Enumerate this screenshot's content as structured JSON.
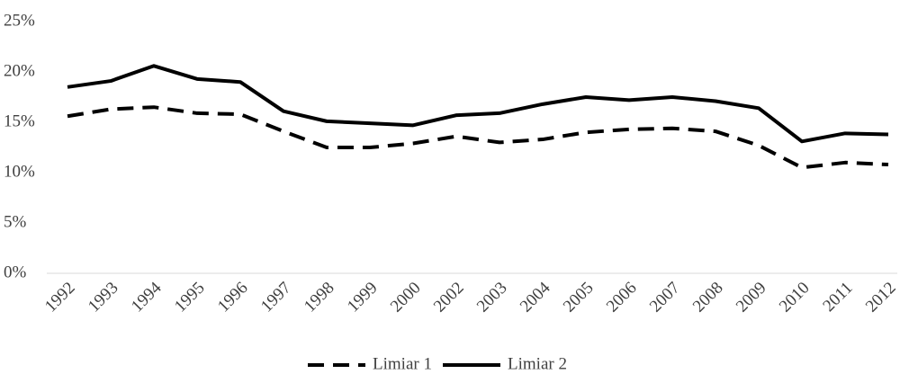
{
  "chart_data": {
    "type": "line",
    "categories": [
      "1992",
      "1993",
      "1994",
      "1995",
      "1996",
      "1997",
      "1998",
      "1999",
      "2000",
      "2002",
      "2003",
      "2004",
      "2005",
      "2006",
      "2007",
      "2008",
      "2009",
      "2010",
      "2011",
      "2012"
    ],
    "series": [
      {
        "name": "Limiar 1",
        "color": "#000000",
        "line_style": "dashed",
        "values": [
          15.6,
          16.3,
          16.5,
          15.9,
          15.8,
          14.1,
          12.5,
          12.5,
          12.9,
          13.6,
          13.0,
          13.3,
          14.0,
          14.3,
          14.4,
          14.1,
          12.7,
          10.5,
          11.0,
          10.8
        ]
      },
      {
        "name": "Limiar 2",
        "color": "#000000",
        "line_style": "solid",
        "values": [
          18.5,
          19.1,
          20.6,
          19.3,
          19.0,
          16.1,
          15.1,
          14.9,
          14.7,
          15.7,
          15.9,
          16.8,
          17.5,
          17.2,
          17.5,
          17.1,
          16.4,
          13.1,
          13.9,
          13.8
        ]
      }
    ],
    "ylim": [
      0,
      25
    ],
    "yticks": [
      {
        "value": 0,
        "label": "0%"
      },
      {
        "value": 5,
        "label": "5%"
      },
      {
        "value": 10,
        "label": "10%"
      },
      {
        "value": 15,
        "label": "15%"
      },
      {
        "value": 20,
        "label": "20%"
      },
      {
        "value": 25,
        "label": "25%"
      }
    ],
    "grid": false,
    "legend": "bottom"
  }
}
